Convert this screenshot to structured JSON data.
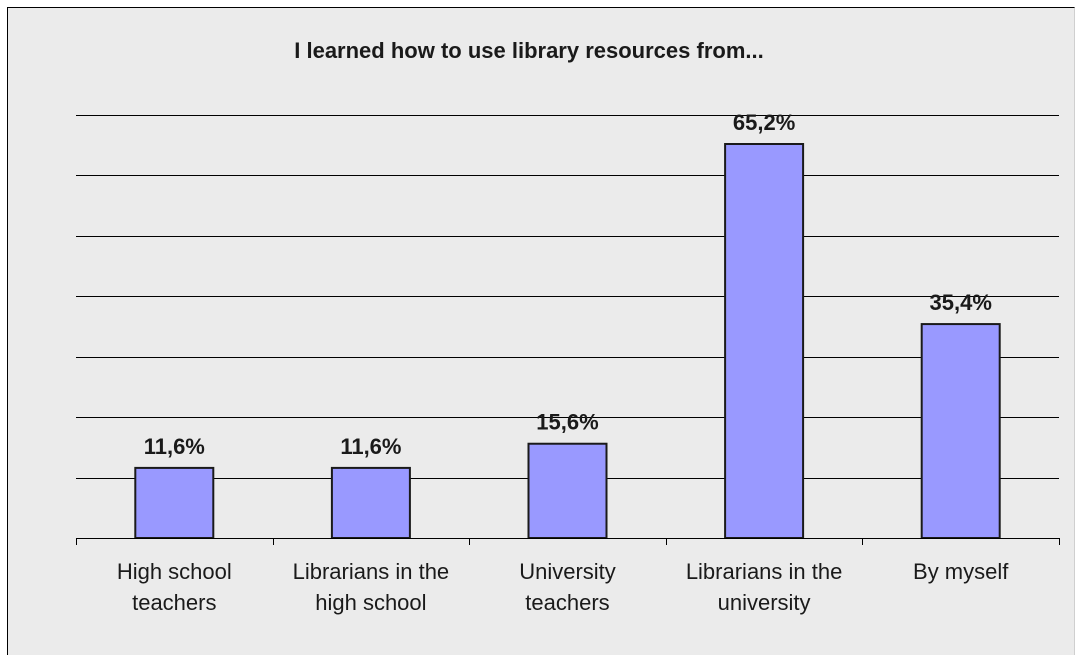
{
  "chart_data": {
    "type": "bar",
    "title": "I learned how to use library resources from...",
    "categories": [
      [
        "High school",
        "teachers"
      ],
      [
        "Librarians in the",
        "high school"
      ],
      [
        "University",
        "teachers"
      ],
      [
        "Librarians in the",
        "university"
      ],
      [
        "By myself"
      ]
    ],
    "values": [
      11.6,
      11.6,
      15.6,
      65.2,
      35.4
    ],
    "data_labels": [
      "11,6%",
      "11,6%",
      "15,6%",
      "65,2%",
      "35,4%"
    ],
    "ylim": [
      0,
      70
    ],
    "y_gridline_step": 10,
    "grid": true,
    "xlabel": "",
    "ylabel": "",
    "colors": {
      "bar_fill": "#9999ff",
      "bar_stroke": "#1a1a1a",
      "gridline": "#000000",
      "plot_background": "#ebebeb"
    }
  }
}
